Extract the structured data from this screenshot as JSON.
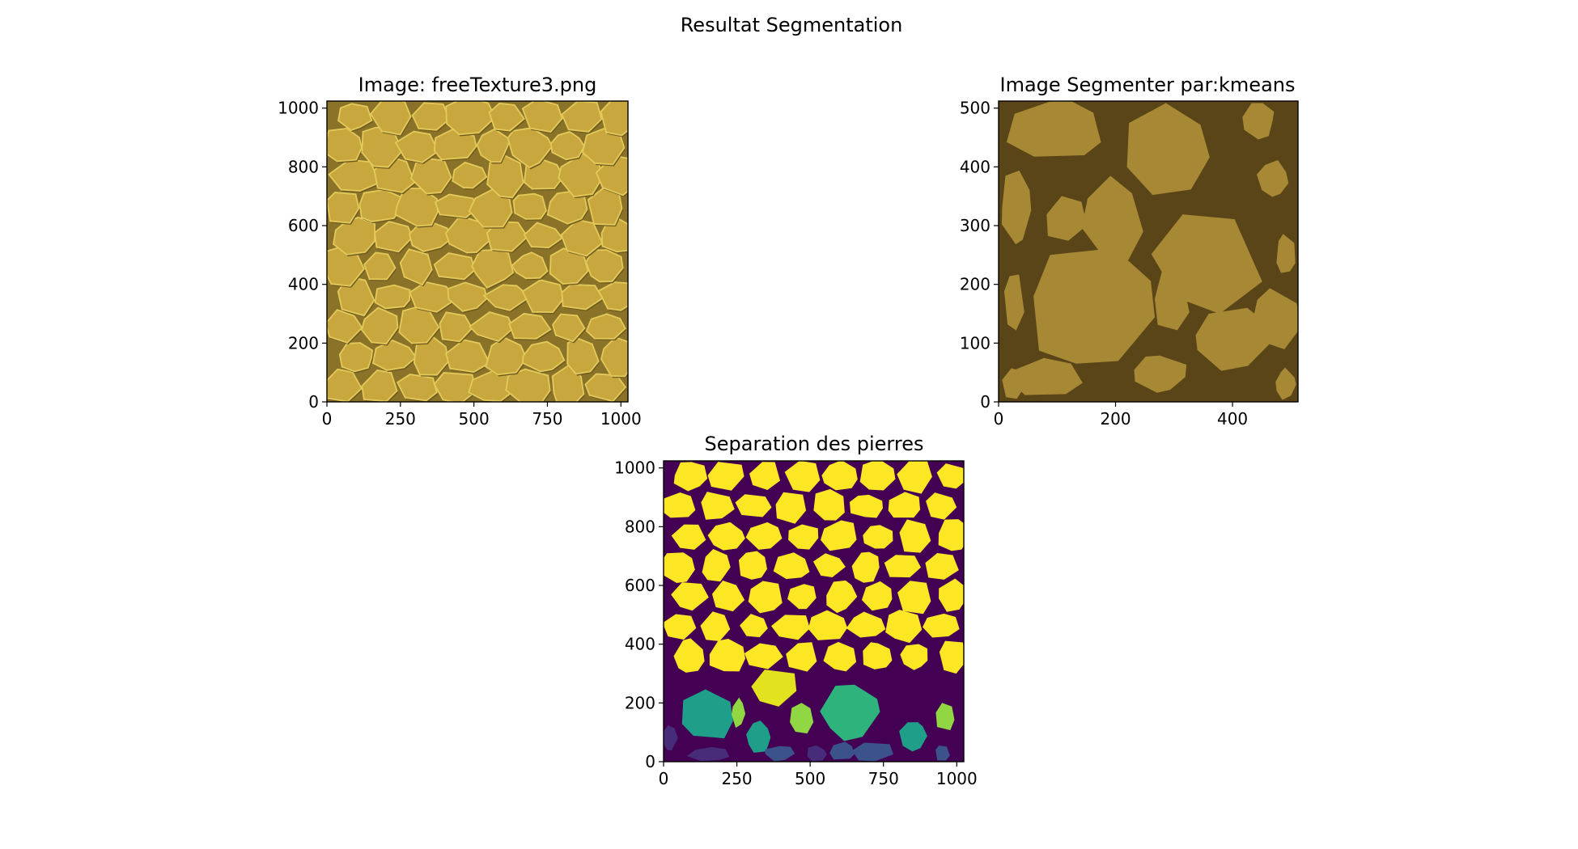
{
  "figure": {
    "suptitle": "Resultat Segmentation"
  },
  "colors": {
    "texture_stone": "#c8a83e",
    "texture_highlight": "#e2c95a",
    "texture_shadow": "#6e5a1e",
    "texture_gap": "#8a7228",
    "kmeans_stone": "#a68835",
    "kmeans_gap": "#5a4518",
    "label_background": "#440154",
    "label_stone_main": "#fde725",
    "label_yellow_green": "#e3e21f",
    "label_green": "#90d743",
    "label_teal": "#2eb37c",
    "label_teal_dark": "#1f9e89",
    "label_blue": "#3b528b",
    "label_indigo": "#472c7a"
  },
  "chart_data": [
    {
      "type": "image",
      "panel": "top-left",
      "title": "Image: freeTexture3.png",
      "xlim": [
        0,
        1024
      ],
      "ylim": [
        0,
        1024
      ],
      "xticks": [
        0,
        250,
        500,
        750,
        1000
      ],
      "yticks": [
        0,
        200,
        400,
        600,
        800,
        1000
      ],
      "stone_grid": {
        "cols": 8,
        "rows": 10
      }
    },
    {
      "type": "image",
      "panel": "top-right",
      "title": "Image Segmenter par:kmeans",
      "xlim": [
        0,
        512
      ],
      "ylim": [
        0,
        512
      ],
      "xticks": [
        0,
        200,
        400
      ],
      "yticks": [
        0,
        100,
        200,
        300,
        400,
        500
      ],
      "stones": [
        {
          "x": 100,
          "y": 460,
          "w": 190,
          "h": 120
        },
        {
          "x": 285,
          "y": 430,
          "w": 170,
          "h": 170
        },
        {
          "x": 445,
          "y": 480,
          "w": 60,
          "h": 70
        },
        {
          "x": 470,
          "y": 380,
          "w": 60,
          "h": 70
        },
        {
          "x": 30,
          "y": 330,
          "w": 60,
          "h": 140
        },
        {
          "x": 115,
          "y": 310,
          "w": 85,
          "h": 90
        },
        {
          "x": 195,
          "y": 310,
          "w": 120,
          "h": 160
        },
        {
          "x": 360,
          "y": 240,
          "w": 200,
          "h": 190
        },
        {
          "x": 490,
          "y": 250,
          "w": 40,
          "h": 80
        },
        {
          "x": 160,
          "y": 160,
          "w": 250,
          "h": 230
        },
        {
          "x": 295,
          "y": 170,
          "w": 70,
          "h": 130
        },
        {
          "x": 400,
          "y": 110,
          "w": 160,
          "h": 130
        },
        {
          "x": 470,
          "y": 140,
          "w": 100,
          "h": 110
        },
        {
          "x": 25,
          "y": 170,
          "w": 40,
          "h": 120
        },
        {
          "x": 25,
          "y": 30,
          "w": 45,
          "h": 60
        },
        {
          "x": 80,
          "y": 40,
          "w": 140,
          "h": 80
        },
        {
          "x": 275,
          "y": 50,
          "w": 100,
          "h": 70
        },
        {
          "x": 490,
          "y": 30,
          "w": 40,
          "h": 60
        }
      ]
    },
    {
      "type": "image",
      "panel": "bottom-center",
      "title": "Separation des pierres",
      "xlim": [
        0,
        1024
      ],
      "ylim": [
        0,
        1024
      ],
      "xticks": [
        0,
        250,
        500,
        750,
        1000
      ],
      "yticks": [
        0,
        200,
        400,
        600,
        800,
        1000
      ],
      "stone_grid": {
        "cols": 8,
        "rows": 10
      },
      "bottom_regions": [
        {
          "x": 150,
          "y": 160,
          "w": 220,
          "h": 190,
          "color": "#1f9e89"
        },
        {
          "x": 255,
          "y": 165,
          "w": 55,
          "h": 110,
          "color": "#90d743"
        },
        {
          "x": 380,
          "y": 250,
          "w": 190,
          "h": 150,
          "color": "#e3e21f"
        },
        {
          "x": 325,
          "y": 85,
          "w": 95,
          "h": 120,
          "color": "#1f9e89"
        },
        {
          "x": 470,
          "y": 150,
          "w": 100,
          "h": 120,
          "color": "#90d743"
        },
        {
          "x": 640,
          "y": 170,
          "w": 230,
          "h": 210,
          "color": "#2eb37c"
        },
        {
          "x": 850,
          "y": 90,
          "w": 110,
          "h": 120,
          "color": "#1f9e89"
        },
        {
          "x": 960,
          "y": 155,
          "w": 80,
          "h": 120,
          "color": "#90d743"
        },
        {
          "x": 20,
          "y": 80,
          "w": 60,
          "h": 100,
          "color": "#472c7a"
        },
        {
          "x": 160,
          "y": 25,
          "w": 170,
          "h": 55,
          "color": "#472c7a"
        },
        {
          "x": 395,
          "y": 28,
          "w": 120,
          "h": 60,
          "color": "#3b528b"
        },
        {
          "x": 520,
          "y": 28,
          "w": 80,
          "h": 60,
          "color": "#472c7a"
        },
        {
          "x": 610,
          "y": 35,
          "w": 110,
          "h": 70,
          "color": "#3b528b"
        },
        {
          "x": 710,
          "y": 35,
          "w": 170,
          "h": 75,
          "color": "#3b528b"
        },
        {
          "x": 950,
          "y": 30,
          "w": 60,
          "h": 70,
          "color": "#3b528b"
        }
      ]
    }
  ]
}
